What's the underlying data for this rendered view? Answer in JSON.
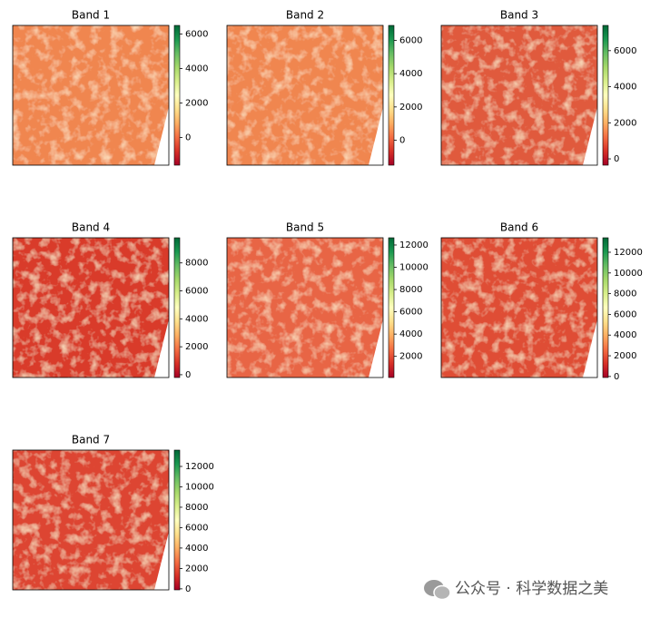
{
  "chart_data": [
    {
      "type": "image",
      "title": "Band 1",
      "clim": [
        -1600,
        6500
      ],
      "cticks": [
        0,
        2000,
        4000,
        6000
      ],
      "colormap": [
        "#a50026",
        "#d73027",
        "#f46d43",
        "#fdae61",
        "#fee08b",
        "#ffffbf",
        "#d9ef8b",
        "#a6d96a",
        "#66bd63",
        "#1a9850",
        "#006837"
      ]
    },
    {
      "type": "image",
      "title": "Band 2",
      "clim": [
        -1500,
        6900
      ],
      "cticks": [
        0,
        2000,
        4000,
        6000
      ],
      "colormap": [
        "#a50026",
        "#d73027",
        "#f46d43",
        "#fdae61",
        "#fee08b",
        "#ffffbf",
        "#d9ef8b",
        "#a6d96a",
        "#66bd63",
        "#1a9850",
        "#006837"
      ]
    },
    {
      "type": "image",
      "title": "Band 3",
      "clim": [
        -350,
        7400
      ],
      "cticks": [
        0,
        2000,
        4000,
        6000
      ],
      "colormap": [
        "#a50026",
        "#d73027",
        "#f46d43",
        "#fdae61",
        "#fee08b",
        "#ffffbf",
        "#d9ef8b",
        "#a6d96a",
        "#66bd63",
        "#1a9850",
        "#006837"
      ]
    },
    {
      "type": "image",
      "title": "Band 4",
      "clim": [
        -200,
        9800
      ],
      "cticks": [
        0,
        2000,
        4000,
        6000,
        8000
      ],
      "colormap": [
        "#a50026",
        "#d73027",
        "#f46d43",
        "#fdae61",
        "#fee08b",
        "#ffffbf",
        "#d9ef8b",
        "#a6d96a",
        "#66bd63",
        "#1a9850",
        "#006837"
      ]
    },
    {
      "type": "image",
      "title": "Band 5",
      "clim": [
        100,
        12650
      ],
      "cticks": [
        2000,
        4000,
        6000,
        8000,
        10000,
        12000
      ],
      "colormap": [
        "#a50026",
        "#d73027",
        "#f46d43",
        "#fdae61",
        "#fee08b",
        "#ffffbf",
        "#d9ef8b",
        "#a6d96a",
        "#66bd63",
        "#1a9850",
        "#006837"
      ]
    },
    {
      "type": "image",
      "title": "Band 6",
      "clim": [
        -100,
        13400
      ],
      "cticks": [
        0,
        2000,
        4000,
        6000,
        8000,
        10000,
        12000
      ],
      "colormap": [
        "#a50026",
        "#d73027",
        "#f46d43",
        "#fdae61",
        "#fee08b",
        "#ffffbf",
        "#d9ef8b",
        "#a6d96a",
        "#66bd63",
        "#1a9850",
        "#006837"
      ]
    },
    {
      "type": "image",
      "title": "Band 7",
      "clim": [
        -100,
        13600
      ],
      "cticks": [
        0,
        2000,
        4000,
        6000,
        8000,
        10000,
        12000
      ],
      "colormap": [
        "#a50026",
        "#d73027",
        "#f46d43",
        "#fdae61",
        "#fee08b",
        "#ffffbf",
        "#d9ef8b",
        "#a6d96a",
        "#66bd63",
        "#1a9850",
        "#006837"
      ]
    }
  ],
  "watermark": "公众号 · 科学数据之美"
}
